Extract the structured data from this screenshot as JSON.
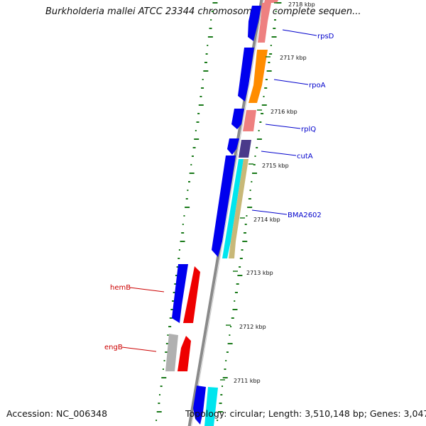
{
  "title": "Burkholderia mallei ATCC 23344 chromosome 1, complete sequen...",
  "footer": {
    "accession": "Accession: NC_006348",
    "summary": "Topology: circular; Length: 3,510,148 bp; Genes: 3,047"
  },
  "ruler": [
    "2718 kbp",
    "2717 kbp",
    "2716 kbp",
    "2715 kbp",
    "2714 kbp",
    "2713 kbp",
    "2712 kbp",
    "2711 kbp"
  ],
  "gene_labels": [
    {
      "id": "rpsD",
      "text": "rpsD",
      "color": "#0000cc"
    },
    {
      "id": "rpoA",
      "text": "rpoA",
      "color": "#0000cc"
    },
    {
      "id": "rplQ",
      "text": "rplQ",
      "color": "#0000cc"
    },
    {
      "id": "cutA",
      "text": "cutA",
      "color": "#0000cc"
    },
    {
      "id": "BMA2602",
      "text": "BMA2602",
      "color": "#0000cc"
    },
    {
      "id": "hemB",
      "text": "hemB",
      "color": "#cc0000"
    },
    {
      "id": "engB",
      "text": "engB",
      "color": "#cc0000"
    }
  ],
  "colors": {
    "backbone": "#8a8a8a",
    "gc_skew": "#1a7a1a",
    "cds_forward": "#0000ee",
    "cds_reverse": "#ee0000",
    "rrna_like": "#ee8080",
    "orange": "#ff8c00",
    "cyan": "#00e5ee",
    "tan": "#c8b878",
    "purple": "#4a3a8a",
    "grey": "#b0b0b0",
    "lavender": "#aaaaff"
  }
}
